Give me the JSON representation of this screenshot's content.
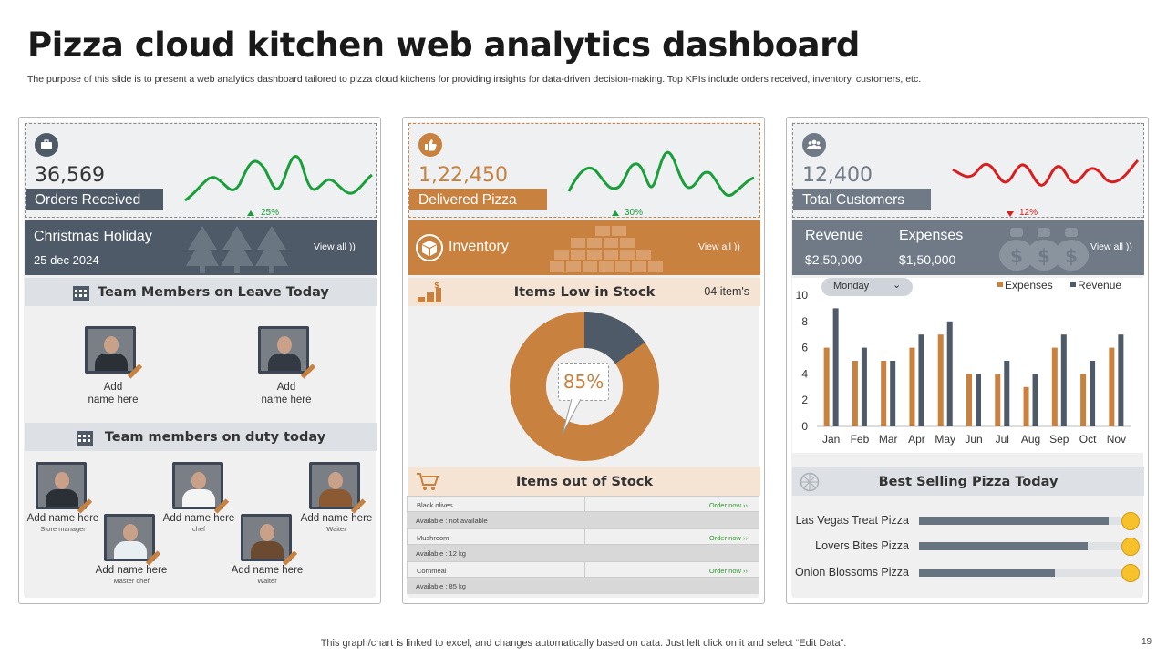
{
  "title": "Pizza cloud kitchen web analytics dashboard",
  "subtitle": "The purpose of this slide is to present a web analytics dashboard tailored to pizza cloud kitchens for providing insights for data-driven decision-making. Top KPIs include orders received, inventory, customers, etc.",
  "colors": {
    "slate": "#4e5a68",
    "orange": "#c8813e",
    "gray_panel": "#6f7a86",
    "green": "#1a9e3a",
    "red": "#d81f1f"
  },
  "kpis": [
    {
      "value": "36,569",
      "label": "Orders Received",
      "pct": "25%",
      "trend": "up",
      "icon": "briefcase-icon"
    },
    {
      "value": "1,22,450",
      "label": "Delivered Pizza",
      "pct": "30%",
      "trend": "up",
      "icon": "thumbs-up-icon"
    },
    {
      "value": "12,400",
      "label": "Total Customers",
      "pct": "12%",
      "trend": "down",
      "icon": "users-icon"
    }
  ],
  "holiday": {
    "name": "Christmas Holiday",
    "date": "25 dec 2024",
    "view_all": "View all ))"
  },
  "inventory": {
    "label": "Inventory",
    "view_all": "View all ))"
  },
  "finance": {
    "revenue_label": "Revenue",
    "revenue_value": "$2,50,000",
    "expenses_label": "Expenses",
    "expenses_value": "$1,50,000",
    "view_all": "View all ))"
  },
  "leave": {
    "heading": "Team Members on Leave Today",
    "members": [
      {
        "name": "Add\nname here"
      },
      {
        "name": "Add\nname here"
      }
    ]
  },
  "duty": {
    "heading": "Team members on duty today",
    "members": [
      {
        "name": "Add name here",
        "role": "Store manager"
      },
      {
        "name": "Add name here",
        "role": "chef"
      },
      {
        "name": "Add name here",
        "role": "Waiter"
      },
      {
        "name": "Add name here",
        "role": "Master chef"
      },
      {
        "name": "Add name here",
        "role": "Waiter"
      }
    ]
  },
  "low_stock": {
    "heading": "Items Low in Stock",
    "count": "04 item's",
    "percent": "85%"
  },
  "out_of_stock": {
    "heading": "Items out of Stock",
    "rows": [
      {
        "item": "Black olives",
        "action": "Order now ››",
        "availability": "Available : not available"
      },
      {
        "item": "Mushroom",
        "action": "Order now ››",
        "availability": "Available : 12 kg"
      },
      {
        "item": "Cornmeal",
        "action": "Order now ››",
        "availability": "Available : 85 kg"
      }
    ]
  },
  "chart_controls": {
    "dropdown": "Monday"
  },
  "chart_data": {
    "type": "bar",
    "categories": [
      "Jan",
      "Feb",
      "Mar",
      "Apr",
      "May",
      "Jun",
      "Jul",
      "Aug",
      "Sep",
      "Oct",
      "Nov"
    ],
    "series": [
      {
        "name": "Expenses",
        "color": "#c8813e",
        "values": [
          6,
          5,
          5,
          6,
          7,
          4,
          4,
          3,
          6,
          4,
          6
        ]
      },
      {
        "name": "Revenue",
        "color": "#4e5a68",
        "values": [
          9,
          6,
          5,
          7,
          8,
          4,
          5,
          4,
          7,
          5,
          7
        ]
      }
    ],
    "ylim": [
      0,
      10
    ],
    "yticks": [
      "0",
      "2",
      "4",
      "6",
      "8",
      "10"
    ],
    "legend_position": "top-right"
  },
  "best_selling": {
    "heading": "Best Selling Pizza Today",
    "items": [
      {
        "name": "Las Vegas Treat Pizza",
        "share": 0.92
      },
      {
        "name": "Lovers Bites Pizza",
        "share": 0.82
      },
      {
        "name": "Onion Blossoms Pizza",
        "share": 0.66
      }
    ]
  },
  "footer": "This graph/chart is linked to excel,  and changes automatically based on data. Just left click on it and select “Edit Data”.",
  "page_number": "19"
}
